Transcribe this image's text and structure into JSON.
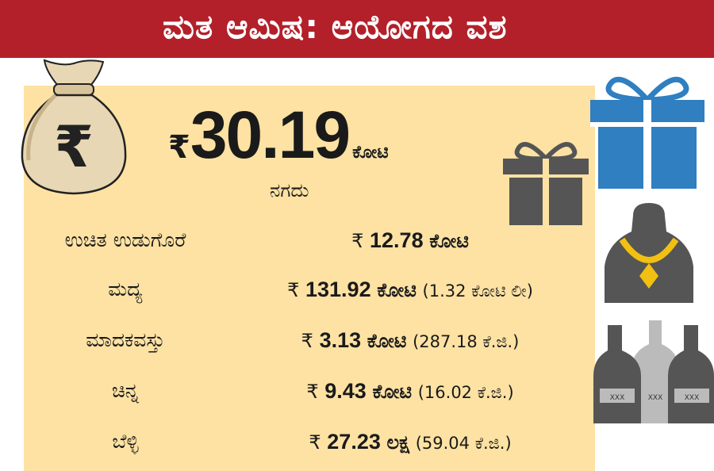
{
  "banner": {
    "title": "ಮತ ಆಮಿಷ: ಆಯೋಗದ ವಶ"
  },
  "cash": {
    "currency": "₹",
    "amount": "30.19",
    "unit": "ಕೋಟಿ",
    "caption": "ನಗದು"
  },
  "rows": [
    {
      "label": "ಉಚಿತ ಉಡುಗೊರೆ",
      "currency": "₹",
      "amount": "12.78",
      "unit": "ಕೋಟಿ",
      "extra": ""
    },
    {
      "label": "ಮದ್ಯ",
      "currency": "₹",
      "amount": "131.92",
      "unit": "ಕೋಟಿ",
      "extra": "(1.32 ಕೋಟಿ ಲೀ)"
    },
    {
      "label": "ಮಾದಕವಸ್ತು",
      "currency": "₹",
      "amount": "3.13",
      "unit": "ಕೋಟಿ",
      "extra": "(287.18 ಕೆ.ಜಿ.)"
    },
    {
      "label": "ಚಿನ್ನ",
      "currency": "₹",
      "amount": "9.43",
      "unit": "ಕೋಟಿ",
      "extra": "(16.02 ಕೆ.ಜಿ.)"
    },
    {
      "label": "ಬೆಳ್ಳಿ",
      "currency": "₹",
      "amount": "27.23",
      "unit": "ಲಕ್ಷ",
      "extra": "(59.04 ಕೆ.ಜಿ.)"
    }
  ],
  "icons": {
    "money_bag": "money-bag-icon",
    "gift_small": "gift-icon",
    "gift_large": "gift-icon",
    "necklace": "necklace-icon",
    "bottles": "liquor-bottles-icon",
    "bottle_label": "XXX"
  },
  "colors": {
    "banner": "#b3202a",
    "panel": "#fde2a3",
    "gift_blue": "#2f7fc1",
    "gift_gray": "#555555",
    "gold": "#f2c012"
  }
}
